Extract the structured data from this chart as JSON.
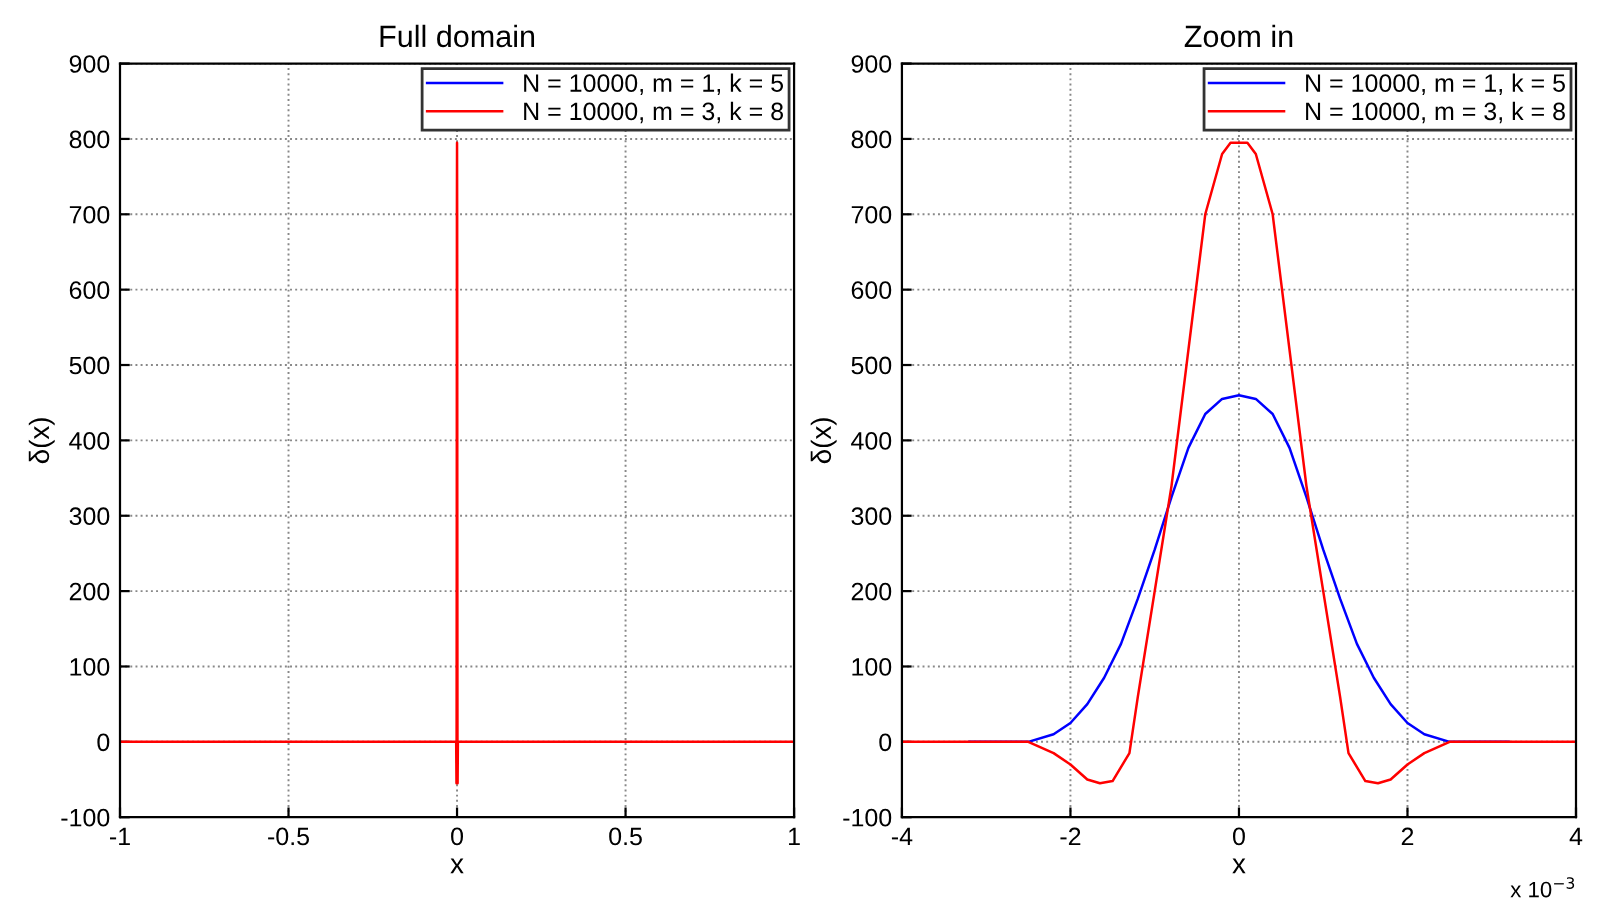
{
  "chart_data": [
    {
      "type": "line",
      "title": "Full domain",
      "xlabel": "x",
      "ylabel": "δ(x)",
      "xlim": [
        -1,
        1
      ],
      "ylim": [
        -100,
        900
      ],
      "xticks": [
        -1,
        -0.5,
        0,
        0.5,
        1
      ],
      "yticks": [
        -100,
        0,
        100,
        200,
        300,
        400,
        500,
        600,
        700,
        800,
        900
      ],
      "grid": true,
      "legend": "top right",
      "series": [
        {
          "name": "N = 10000, m = 1, k = 5",
          "color": "#0000ff",
          "values": [
            null
          ]
        },
        {
          "name": "N = 10000, m = 3, k = 8",
          "color": "#ff0000",
          "x": [
            -1,
            -0.0025,
            -0.00165,
            -0.0013,
            -0.0008,
            -0.0004,
            0,
            0.0004,
            0.0008,
            0.0013,
            0.00165,
            0.0025,
            1
          ],
          "values": [
            0,
            0,
            -55,
            0,
            300,
            700,
            795,
            700,
            300,
            0,
            -55,
            0,
            0
          ]
        }
      ]
    },
    {
      "type": "line",
      "title": "Zoom in",
      "xlabel": "x",
      "ylabel": "δ(x)",
      "xlim": [
        -4,
        4
      ],
      "ylim": [
        -100,
        900
      ],
      "xticks": [
        -4,
        -2,
        0,
        2,
        4
      ],
      "yticks": [
        -100,
        0,
        100,
        200,
        300,
        400,
        500,
        600,
        700,
        800,
        900
      ],
      "grid": true,
      "legend": "top right",
      "annotations": [
        "x 10$^{−3}$"
      ],
      "series": [
        {
          "name": "N = 10000, m = 1, k = 5",
          "color": "#0000ff",
          "x": [
            -3.2,
            -2.5,
            -2.2,
            -2,
            -1.8,
            -1.6,
            -1.4,
            -1.2,
            -1,
            -0.8,
            -0.6,
            -0.4,
            -0.2,
            0,
            0.2,
            0.4,
            0.6,
            0.8,
            1,
            1.2,
            1.4,
            1.6,
            1.8,
            2,
            2.2,
            2.5,
            3.2
          ],
          "values": [
            0,
            0,
            10,
            25,
            50,
            85,
            130,
            190,
            255,
            325,
            390,
            435,
            455,
            460,
            455,
            435,
            390,
            325,
            255,
            190,
            130,
            85,
            50,
            25,
            10,
            0,
            0
          ]
        },
        {
          "name": "N = 10000, m = 3, k = 8",
          "color": "#ff0000",
          "x": [
            -4,
            -2.5,
            -2.2,
            -2,
            -1.8,
            -1.65,
            -1.5,
            -1.3,
            -1.2,
            -1,
            -0.8,
            -0.6,
            -0.4,
            -0.2,
            -0.1,
            0,
            0.1,
            0.2,
            0.4,
            0.6,
            0.8,
            1,
            1.2,
            1.3,
            1.5,
            1.65,
            1.8,
            2,
            2.2,
            2.5,
            4
          ],
          "values": [
            0,
            0,
            -15,
            -30,
            -50,
            -55,
            -52,
            -15,
            60,
            200,
            340,
            520,
            700,
            780,
            795,
            795,
            795,
            780,
            700,
            520,
            340,
            200,
            60,
            -15,
            -52,
            -55,
            -50,
            -30,
            -15,
            0,
            0
          ]
        }
      ]
    }
  ]
}
